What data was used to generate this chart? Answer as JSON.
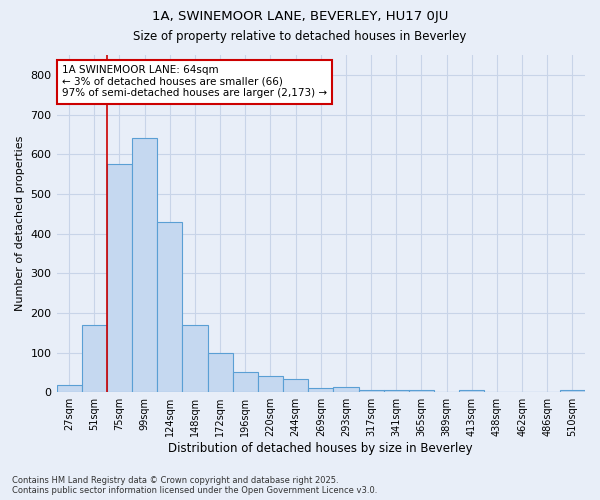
{
  "title1": "1A, SWINEMOOR LANE, BEVERLEY, HU17 0JU",
  "title2": "Size of property relative to detached houses in Beverley",
  "xlabel": "Distribution of detached houses by size in Beverley",
  "ylabel": "Number of detached properties",
  "categories": [
    "27sqm",
    "51sqm",
    "75sqm",
    "99sqm",
    "124sqm",
    "148sqm",
    "172sqm",
    "196sqm",
    "220sqm",
    "244sqm",
    "269sqm",
    "293sqm",
    "317sqm",
    "341sqm",
    "365sqm",
    "389sqm",
    "413sqm",
    "438sqm",
    "462sqm",
    "486sqm",
    "510sqm"
  ],
  "values": [
    18,
    170,
    575,
    640,
    430,
    170,
    100,
    50,
    40,
    33,
    10,
    12,
    5,
    5,
    5,
    0,
    5,
    0,
    0,
    0,
    5
  ],
  "bar_color": "#c5d8f0",
  "bar_edge_color": "#5a9fd4",
  "grid_color": "#c8d4e8",
  "bg_color": "#e8eef8",
  "annotation_text": "1A SWINEMOOR LANE: 64sqm\n← 3% of detached houses are smaller (66)\n97% of semi-detached houses are larger (2,173) →",
  "annotation_box_color": "#ffffff",
  "annotation_box_edge": "#cc0000",
  "vline_x": 1.5,
  "vline_color": "#cc0000",
  "ylim": [
    0,
    850
  ],
  "yticks": [
    0,
    100,
    200,
    300,
    400,
    500,
    600,
    700,
    800
  ],
  "footnote": "Contains HM Land Registry data © Crown copyright and database right 2025.\nContains public sector information licensed under the Open Government Licence v3.0."
}
